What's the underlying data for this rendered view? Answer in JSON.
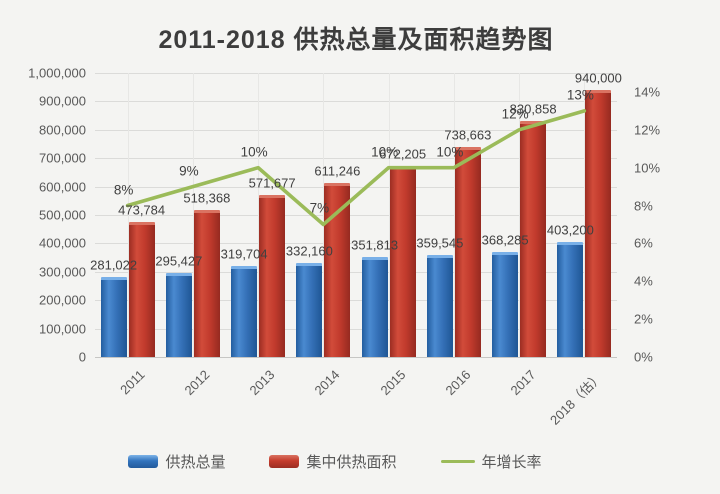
{
  "title": "2011-2018 供热总量及面积趋势图",
  "colors": {
    "bar_blue": "#3273bd",
    "bar_red": "#c43b2c",
    "line_green": "#9bbb59",
    "grid": "#dbdbd9",
    "axis_text": "#595959",
    "label_text": "#404040",
    "title_text": "#3d3d3d",
    "background": "#f4f4f2"
  },
  "chart_data": {
    "type": "bar",
    "subtype": "combo-bar-line",
    "title": "2011-2018 供热总量及面积趋势图",
    "categories": [
      "2011",
      "2012",
      "2013",
      "2014",
      "2015",
      "2016",
      "2017",
      "2018（估）"
    ],
    "series": [
      {
        "name": "供热总量",
        "type": "bar",
        "axis": "left",
        "color": "#3273bd",
        "values": [
          281022,
          295427,
          319704,
          332160,
          351813,
          359545,
          368285,
          403200
        ],
        "labels": [
          "281,022",
          "295,427",
          "319,704",
          "332,160",
          "351,813",
          "359,545",
          "368,285",
          "403,200"
        ]
      },
      {
        "name": "集中供热面积",
        "type": "bar",
        "axis": "left",
        "color": "#c43b2c",
        "values": [
          473784,
          518368,
          571677,
          611246,
          672205,
          738663,
          830858,
          940000
        ],
        "labels": [
          "473,784",
          "518,368",
          "571,677",
          "611,246",
          "672,205",
          "738,663",
          "830,858",
          "940,000"
        ]
      },
      {
        "name": "年增长率",
        "type": "line",
        "axis": "right",
        "color": "#9bbb59",
        "values": [
          8,
          9,
          10,
          7,
          10,
          10,
          12,
          13
        ],
        "labels": [
          "8%",
          "9%",
          "10%",
          "7%",
          "10%",
          "10%",
          "12%",
          "13%"
        ]
      }
    ],
    "left_axis": {
      "min": 0,
      "max": 1000000,
      "step": 100000,
      "tick_labels": [
        "0",
        "100,000",
        "200,000",
        "300,000",
        "400,000",
        "500,000",
        "600,000",
        "700,000",
        "800,000",
        "900,000",
        "1,000,000"
      ]
    },
    "right_axis": {
      "min": 0,
      "max": 15,
      "step": 2,
      "tick_labels": [
        "0%",
        "2%",
        "4%",
        "6%",
        "8%",
        "10%",
        "12%",
        "14%"
      ]
    },
    "grid": true,
    "legend_position": "bottom"
  }
}
